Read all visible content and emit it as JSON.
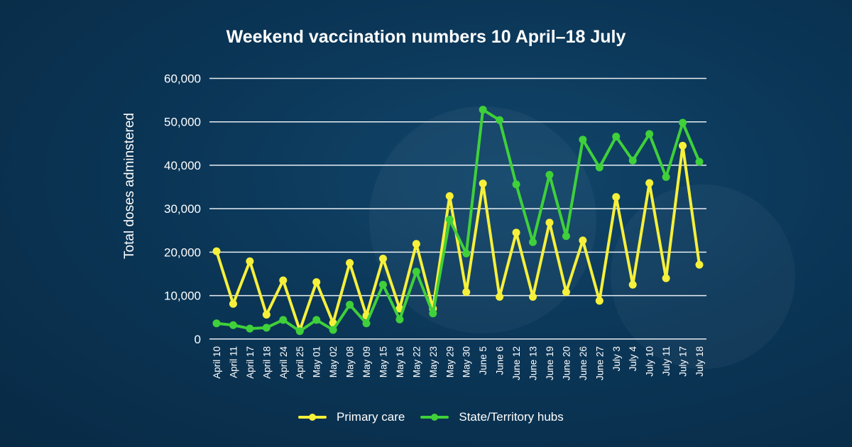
{
  "chart_data": {
    "type": "line",
    "title": "Weekend vaccination numbers 10 April–18 July",
    "xlabel": "",
    "ylabel": "Total doses adminstered",
    "ylim": [
      0,
      60000
    ],
    "yticks": [
      0,
      10000,
      20000,
      30000,
      40000,
      50000,
      60000
    ],
    "ytick_labels": [
      "0",
      "10,000",
      "20,000",
      "30,000",
      "40,000",
      "50,000",
      "60,000"
    ],
    "grid": true,
    "legend_position": "bottom",
    "categories": [
      "April 10",
      "April 11",
      "April 17",
      "April 18",
      "April 24",
      "April 25",
      "May 01",
      "May 02",
      "May 08",
      "May 09",
      "May 15",
      "May 16",
      "May 22",
      "May 23",
      "May 29",
      "May 30",
      "June 5",
      "June 6",
      "June 12",
      "June 13",
      "June 19",
      "June 20",
      "June 26",
      "June 27",
      "July 3",
      "July 4",
      "July 10",
      "July 11",
      "July 17",
      "July 18"
    ],
    "series": [
      {
        "name": "Primary care",
        "color": "#f6f03a",
        "values": [
          20200,
          8100,
          17900,
          5600,
          13500,
          2000,
          13100,
          3700,
          17500,
          5400,
          18500,
          7000,
          21900,
          7000,
          32900,
          10800,
          35800,
          9700,
          24500,
          9700,
          26800,
          10800,
          22700,
          8800,
          32700,
          12500,
          35900,
          14000,
          44500,
          17100
        ]
      },
      {
        "name": "State/Territory hubs",
        "color": "#3fd03a",
        "values": [
          3600,
          3200,
          2400,
          2600,
          4400,
          1800,
          4400,
          2100,
          7900,
          3600,
          12500,
          4500,
          15500,
          5900,
          27500,
          19700,
          52800,
          50400,
          35600,
          22300,
          37800,
          23700,
          45900,
          39500,
          46600,
          41100,
          47200,
          37300,
          49800,
          40800
        ]
      }
    ]
  }
}
